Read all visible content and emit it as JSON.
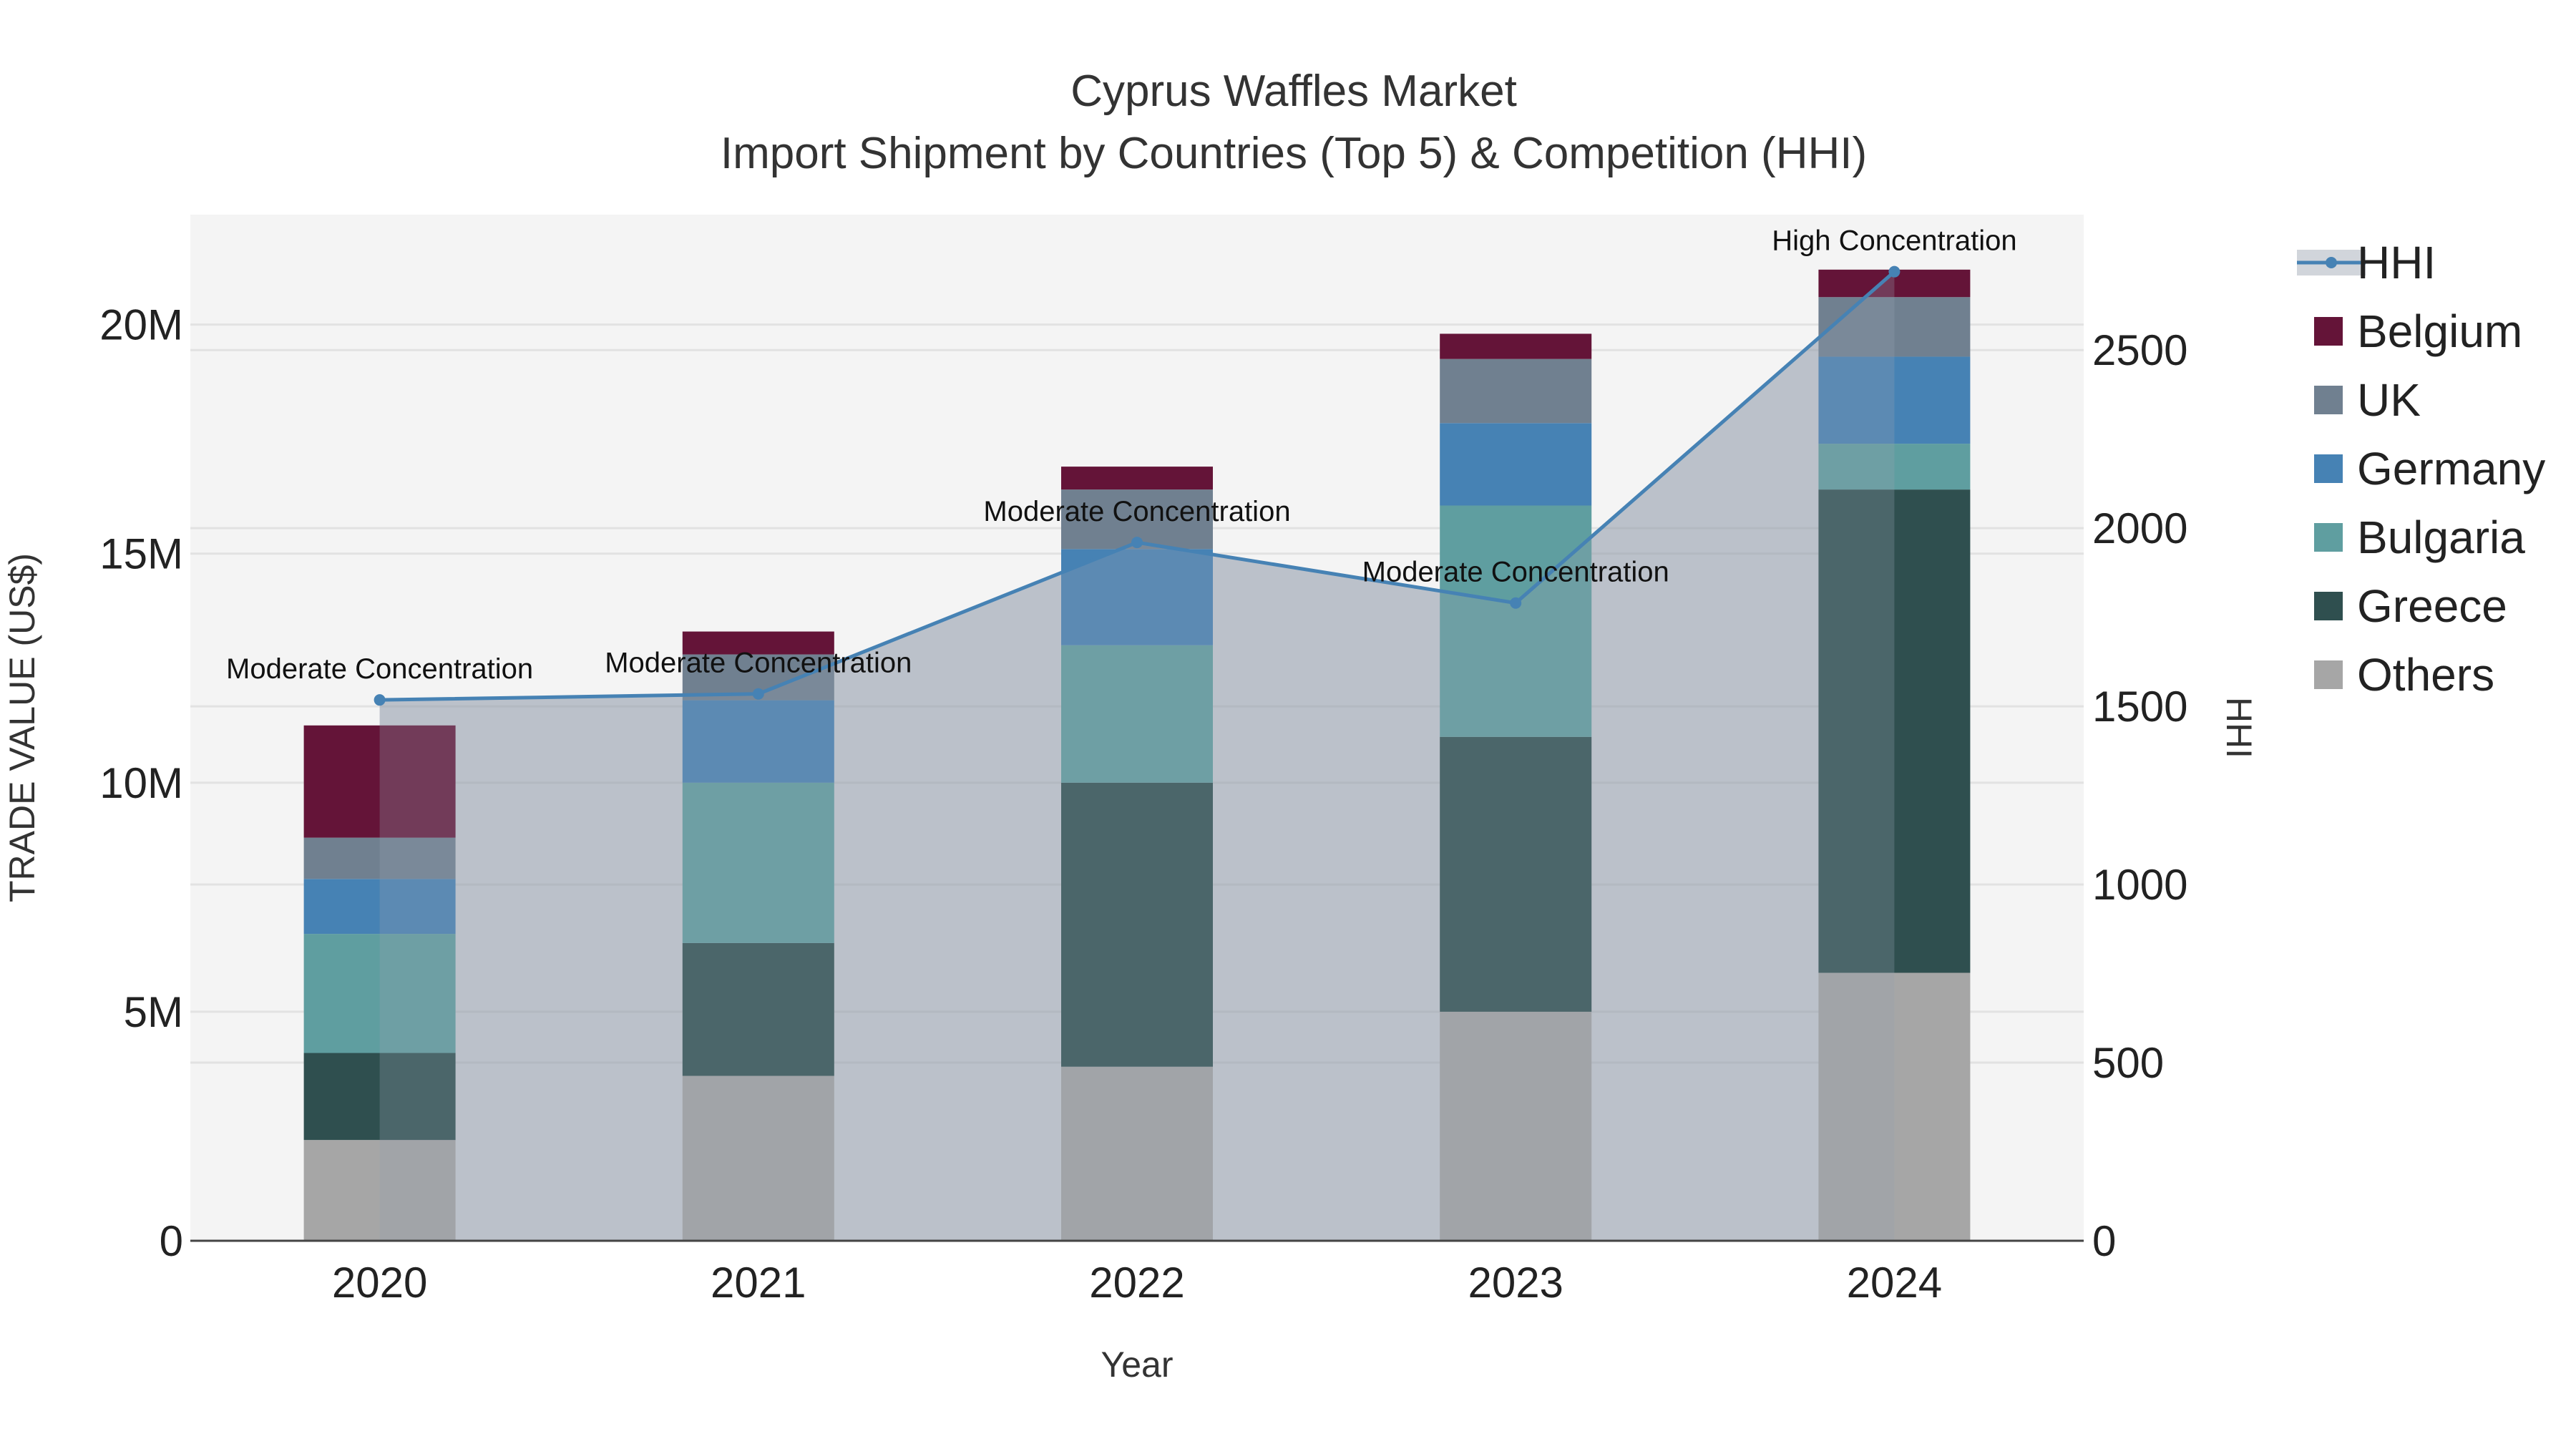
{
  "chart_data": {
    "type": "bar",
    "title": "Cyprus Waffles Market",
    "subtitle": "Import Shipment by Countries (Top 5) & Competition (HHI)",
    "xlabel": "Year",
    "ylabel": "TRADE VALUE (US$)",
    "y2label": "HHI",
    "categories": [
      "2020",
      "2021",
      "2022",
      "2023",
      "2024"
    ],
    "ylim": [
      0,
      22400000
    ],
    "y2lim": [
      0,
      2880
    ],
    "yticks": [
      {
        "value": 0,
        "label": "0"
      },
      {
        "value": 5000000,
        "label": "5M"
      },
      {
        "value": 10000000,
        "label": "10M"
      },
      {
        "value": 15000000,
        "label": "15M"
      },
      {
        "value": 20000000,
        "label": "20M"
      }
    ],
    "y2ticks": [
      {
        "value": 0,
        "label": "0"
      },
      {
        "value": 500,
        "label": "500"
      },
      {
        "value": 1000,
        "label": "1000"
      },
      {
        "value": 1500,
        "label": "1500"
      },
      {
        "value": 2000,
        "label": "2000"
      },
      {
        "value": 2500,
        "label": "2500"
      }
    ],
    "series": [
      {
        "name": "Others",
        "color": "#a6a6a6",
        "values": [
          2200000,
          3600000,
          3800000,
          5000000,
          5850000
        ]
      },
      {
        "name": "Greece",
        "color": "#2f4f4f",
        "values": [
          1900000,
          2900000,
          6200000,
          6000000,
          10550000
        ]
      },
      {
        "name": "Bulgaria",
        "color": "#5f9ea0",
        "values": [
          2600000,
          3500000,
          3000000,
          5050000,
          1000000
        ]
      },
      {
        "name": "Germany",
        "color": "#4682b4",
        "values": [
          1200000,
          1800000,
          2100000,
          1800000,
          1900000
        ]
      },
      {
        "name": "UK",
        "color": "#708090",
        "values": [
          900000,
          1000000,
          1300000,
          1400000,
          1300000
        ]
      },
      {
        "name": "Belgium",
        "color": "#641438",
        "values": [
          2450000,
          500000,
          500000,
          550000,
          600000
        ]
      }
    ],
    "hhi": {
      "name": "HHI",
      "color": "#4682b4",
      "values": [
        1518,
        1535,
        1960,
        1790,
        2720
      ],
      "labels": [
        "Moderate Concentration",
        "Moderate Concentration",
        "Moderate Concentration",
        "Moderate Concentration",
        "High Concentration"
      ]
    },
    "legend_position": "right",
    "grid": true
  }
}
